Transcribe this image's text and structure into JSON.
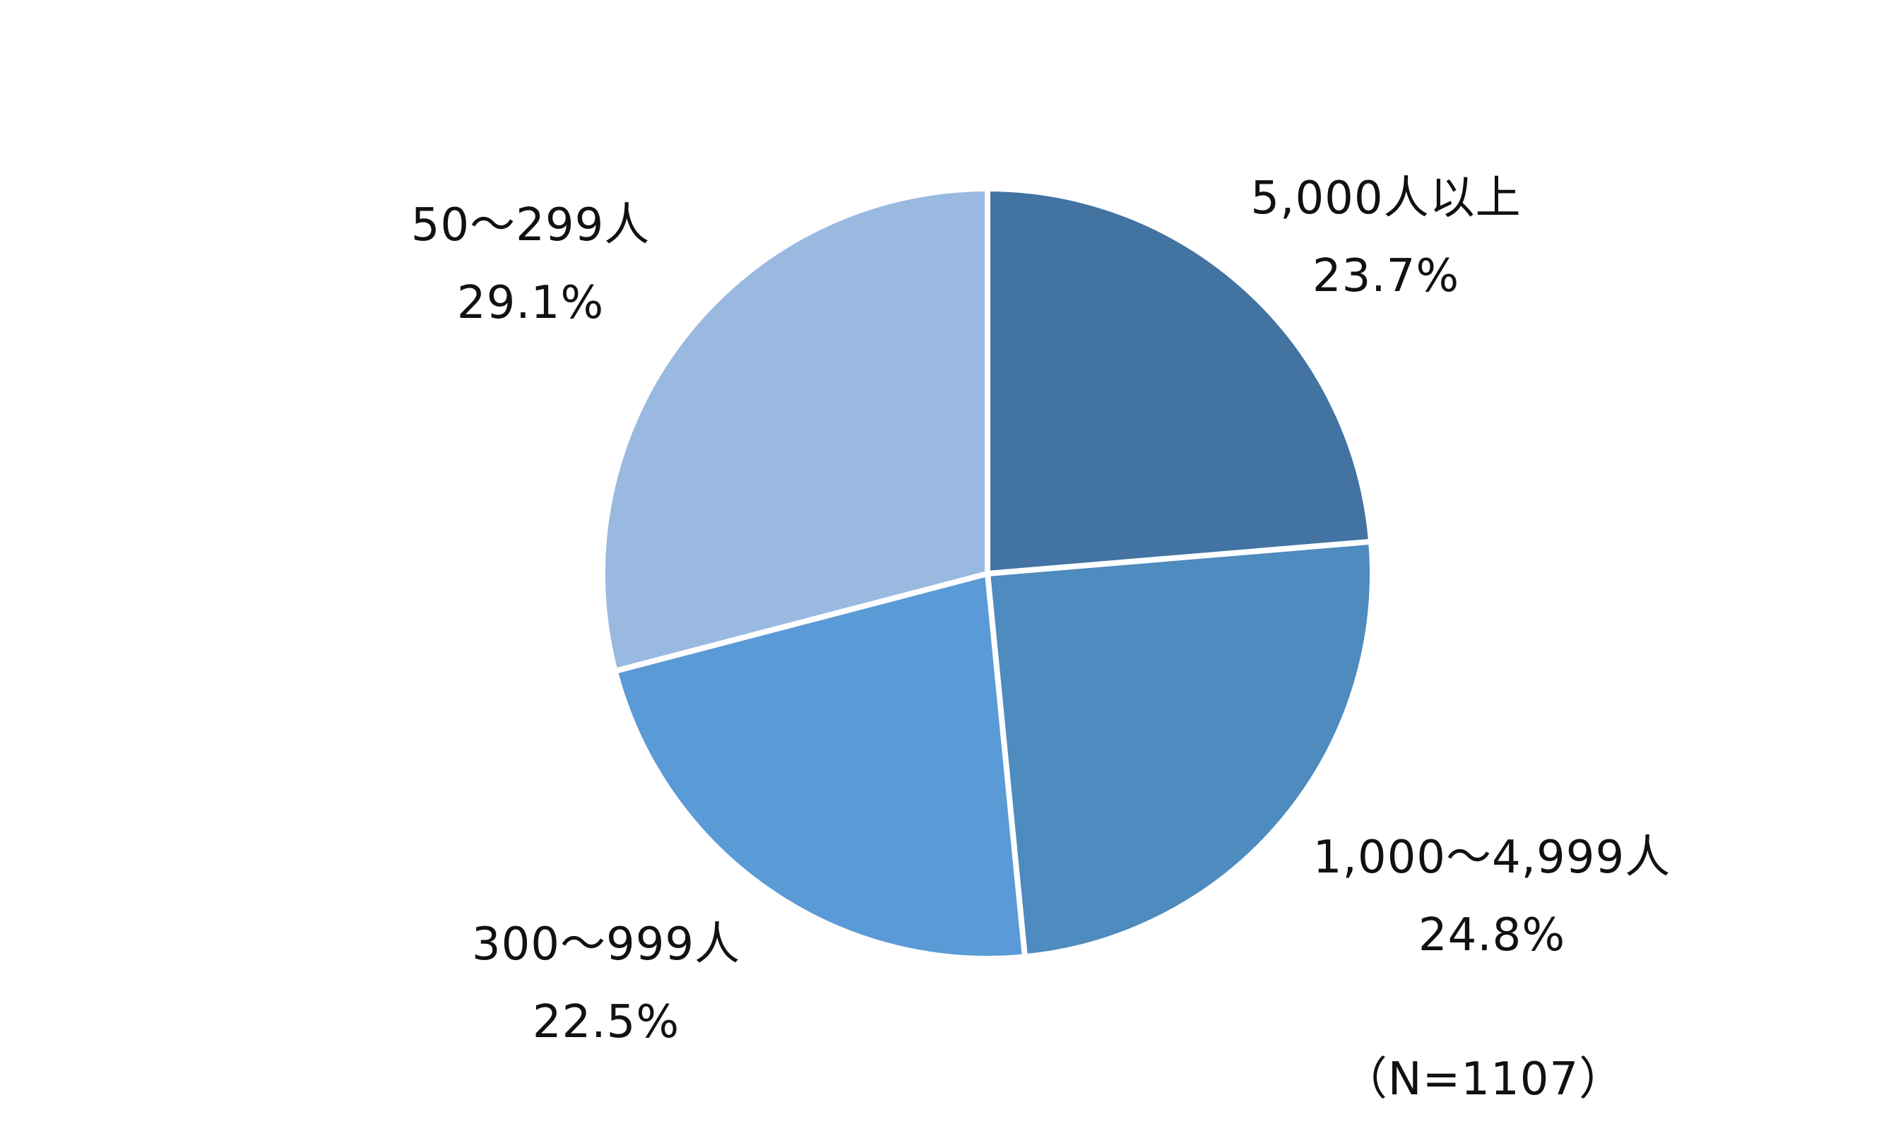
{
  "chart_data": {
    "type": "pie",
    "title": "",
    "note": "（N=1107）",
    "start_angle_deg": 0,
    "direction": "clockwise",
    "legend": "none",
    "label_style": "outside, two lines: category name over percentage",
    "slices": [
      {
        "label": "5,000人以上",
        "value": 23.7,
        "pct_label": "23.7%",
        "color": "#4273A1"
      },
      {
        "label": "1,000〜4,999人",
        "value": 24.8,
        "pct_label": "24.8%",
        "color": "#4E8BBE"
      },
      {
        "label": "300〜999人",
        "value": 22.5,
        "pct_label": "22.5%",
        "color": "#5A9AD6"
      },
      {
        "label": "50〜299人",
        "value": 29.1,
        "pct_label": "29.1%",
        "color": "#99B9E1"
      }
    ]
  },
  "colors": {
    "background": "#FFFFFF",
    "slice_divider": "#FFFFFF",
    "label_text": "#111111"
  }
}
